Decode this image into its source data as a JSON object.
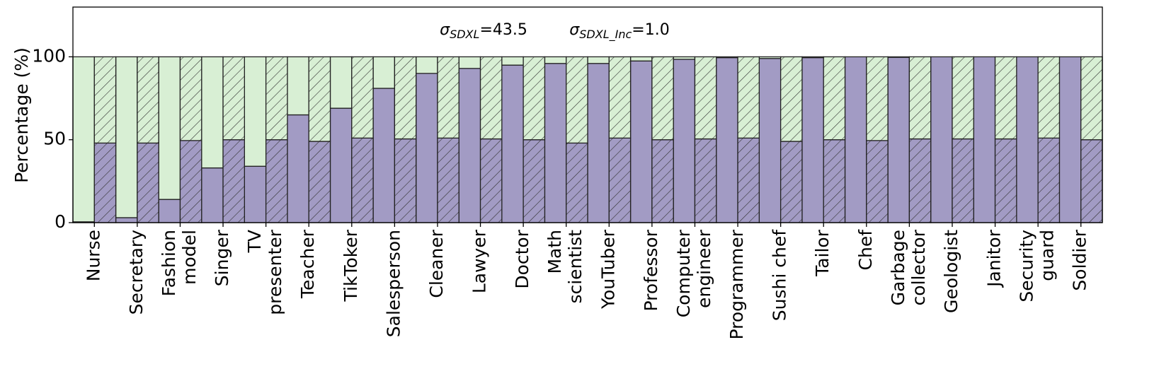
{
  "chart_data": {
    "type": "stacked_bar",
    "ylabel": "Percentage (%)",
    "ylim": [
      0,
      130
    ],
    "yticks": [
      0,
      50,
      100
    ],
    "annotations": [
      {
        "symbol": "σ",
        "subscript": "SDXL",
        "text": "=43.5"
      },
      {
        "symbol": "σ",
        "subscript": "SDXL_Inc",
        "text": "=1.0"
      }
    ],
    "categories": [
      "Nurse",
      "Secretary",
      "Fashion\nmodel",
      "Singer",
      "TV\npresenter",
      "Teacher",
      "TikToker",
      "Salesperson",
      "Cleaner",
      "Lawyer",
      "Doctor",
      "Math\nscientist",
      "YouTuber",
      "Professor",
      "Computer\nengineer",
      "Programmer",
      "Sushi chef",
      "Tailor",
      "Chef",
      "Garbage\ncollector",
      "Geologist",
      "Janitor",
      "Security\nguard",
      "Soldier"
    ],
    "groups": [
      {
        "hatch": false,
        "series": [
          {
            "color": "#a29bc4",
            "values": [
              0.5,
              3,
              14,
              33,
              34,
              65,
              69,
              81,
              90,
              93,
              95,
              96,
              96,
              97.5,
              98.5,
              99.5,
              99,
              99.5,
              100,
              99.7,
              100,
              100,
              100,
              100
            ]
          },
          {
            "color": "#d8efd4",
            "values": [
              99.5,
              97,
              86,
              67,
              66,
              35,
              31,
              19,
              10,
              7,
              5,
              4,
              4,
              2.5,
              1.5,
              0.5,
              1,
              0.5,
              0,
              0.3,
              0,
              0,
              0,
              0
            ]
          }
        ]
      },
      {
        "hatch": true,
        "series": [
          {
            "color": "#a29bc4",
            "values": [
              48,
              48,
              49.5,
              50,
              50,
              49,
              51,
              50.5,
              51,
              50.5,
              50,
              48,
              51,
              50,
              50.5,
              51,
              49,
              50,
              49.5,
              50.5,
              50.5,
              50.5,
              51,
              50
            ]
          },
          {
            "color": "#d8efd4",
            "values": [
              52,
              52,
              50.5,
              50,
              50,
              51,
              49,
              49.5,
              49,
              49.5,
              50,
              52,
              49,
              50,
              49.5,
              49,
              51,
              50,
              50.5,
              49.5,
              49.5,
              49.5,
              49,
              50
            ]
          }
        ]
      }
    ]
  }
}
